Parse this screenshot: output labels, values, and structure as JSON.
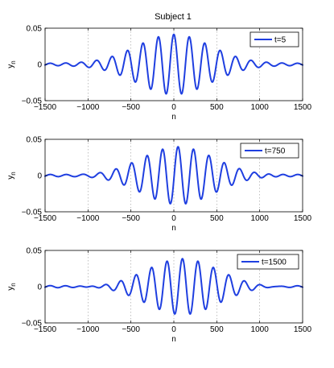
{
  "title": "Subject 1",
  "colors": {
    "series": "#1f3fe0"
  },
  "chart_data": [
    {
      "type": "line",
      "xlabel": "n",
      "ylabel": "y_n",
      "xlim": [
        -1500,
        1500
      ],
      "ylim": [
        -0.05,
        0.05
      ],
      "xticks": [
        -1500,
        -1000,
        -500,
        0,
        500,
        1000,
        1500
      ],
      "yticks": [
        -0.05,
        0,
        0.05
      ],
      "xtick_labels": [
        "−1500",
        "−1000",
        "−500",
        "0",
        "500",
        "1000",
        "1500"
      ],
      "ytick_labels": [
        "−0.05",
        "0",
        "0.05"
      ],
      "grid": "x-dotted",
      "legend": "top-right",
      "series": [
        {
          "name": "t=5",
          "amplitude": 0.04,
          "center": 0,
          "width": 600,
          "period": 180
        }
      ]
    },
    {
      "type": "line",
      "xlabel": "n",
      "ylabel": "y_n",
      "xlim": [
        -1500,
        1500
      ],
      "ylim": [
        -0.05,
        0.05
      ],
      "xticks": [
        -1500,
        -1000,
        -500,
        0,
        500,
        1000,
        1500
      ],
      "yticks": [
        -0.05,
        0,
        0.05
      ],
      "xtick_labels": [
        "−1500",
        "−1000",
        "−500",
        "0",
        "500",
        "1000",
        "1500"
      ],
      "ytick_labels": [
        "−0.05",
        "0",
        "0.05"
      ],
      "grid": "x-dotted",
      "legend": "top-right",
      "series": [
        {
          "name": "t=750",
          "amplitude": 0.04,
          "center": 50,
          "width": 600,
          "period": 180
        }
      ]
    },
    {
      "type": "line",
      "xlabel": "n",
      "ylabel": "y_n",
      "xlim": [
        -1500,
        1500
      ],
      "ylim": [
        -0.05,
        0.05
      ],
      "xticks": [
        -1500,
        -1000,
        -500,
        0,
        500,
        1000,
        1500
      ],
      "yticks": [
        -0.05,
        0,
        0.05
      ],
      "xtick_labels": [
        "−1500",
        "−1000",
        "−500",
        "0",
        "500",
        "1000",
        "1500"
      ],
      "ytick_labels": [
        "−0.05",
        "0",
        "0.05"
      ],
      "grid": "x-dotted",
      "legend": "top-right",
      "series": [
        {
          "name": "t=1500",
          "amplitude": 0.04,
          "center": 100,
          "width": 600,
          "period": 180
        }
      ]
    }
  ]
}
